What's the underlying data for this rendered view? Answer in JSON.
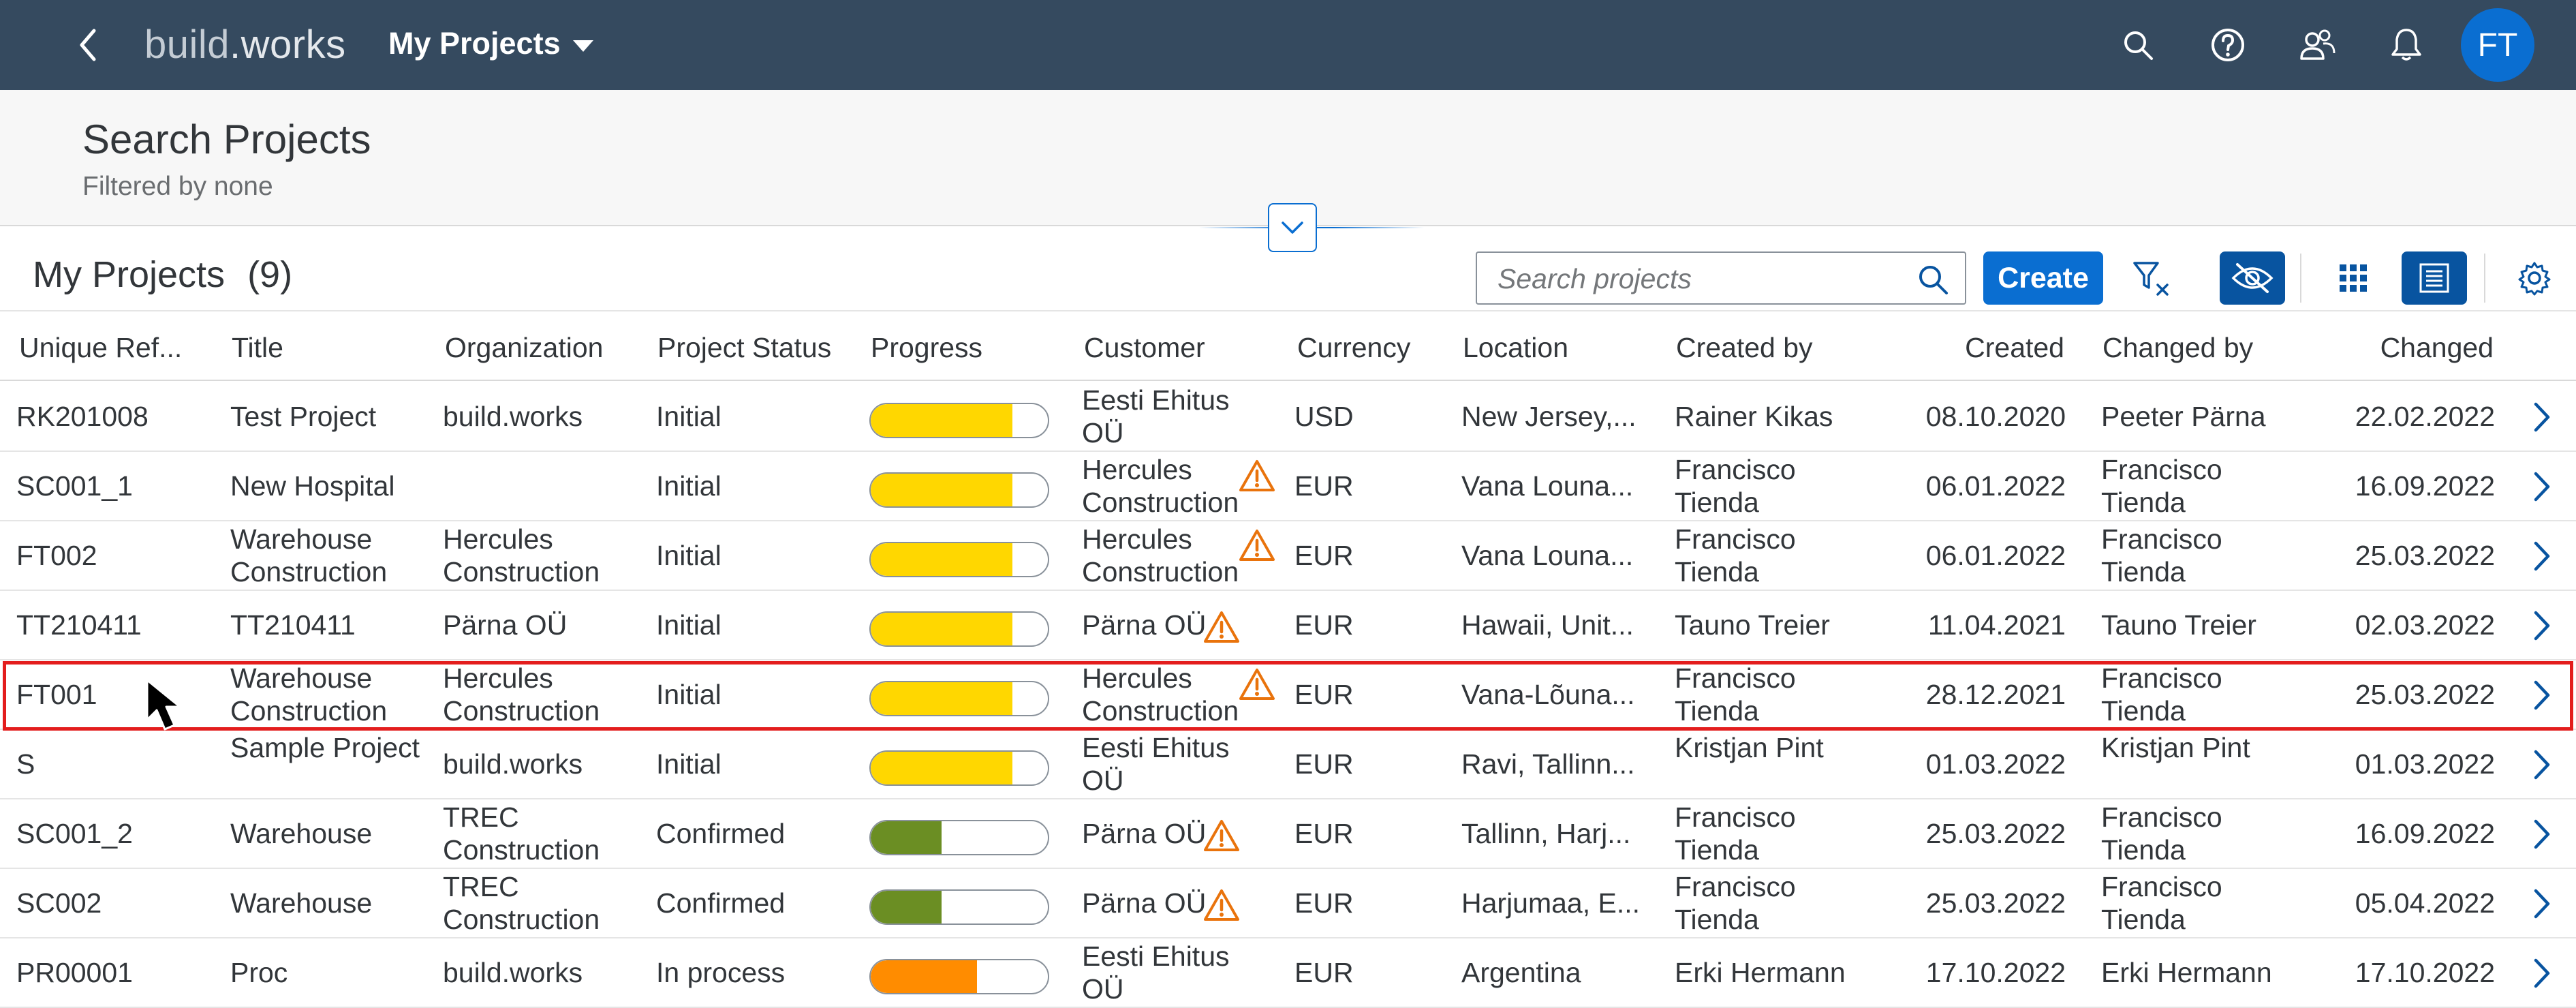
{
  "shell": {
    "brand_a": "build",
    "brand_b": ".works",
    "product": "My Projects",
    "avatar": "FT",
    "icons": [
      "back-icon",
      "search-icon",
      "help-icon",
      "users-icon",
      "bell-icon"
    ]
  },
  "header": {
    "title": "Search Projects",
    "subtitle": "Filtered by none"
  },
  "toolbar": {
    "title": "My Projects",
    "count": "(9)",
    "search_placeholder": "Search projects",
    "create_label": "Create",
    "icons": [
      "clear-filter-icon",
      "hide-icon",
      "grid-view-icon",
      "list-view-icon",
      "settings-icon"
    ]
  },
  "columns": [
    "Unique Ref...",
    "Title",
    "Organization",
    "Project Status",
    "Progress",
    "Customer",
    "Currency",
    "Location",
    "Created by",
    "Created",
    "Changed by",
    "Changed"
  ],
  "colors": {
    "shell": "#354a5f",
    "accent": "#0a6ed1",
    "progress_initial": "#ffd700",
    "progress_confirmed": "#6b8e23",
    "progress_inprocess": "#ff8c00",
    "warning": "#e9730c",
    "highlight": "#e31d1d"
  },
  "rows": [
    {
      "ref": "RK201008",
      "title": "Test Project",
      "org": "build.works",
      "status": "Initial",
      "progress": 0.8,
      "progress_color": "#ffd700",
      "customer": "Eesti Ehitus OÜ",
      "warn": false,
      "currency": "USD",
      "location": "New Jersey,...",
      "created_by": "Rainer Kikas",
      "created": "08.10.2020",
      "changed_by": "Peeter Pärna",
      "changed": "22.02.2022"
    },
    {
      "ref": "SC001_1",
      "title": "New Hospital",
      "org": "",
      "status": "Initial",
      "progress": 0.8,
      "progress_color": "#ffd700",
      "customer": "Hercules Construction",
      "warn": true,
      "currency": "EUR",
      "location": "Vana Louna...",
      "created_by": "Francisco Tienda",
      "created": "06.01.2022",
      "changed_by": "Francisco Tienda",
      "changed": "16.09.2022"
    },
    {
      "ref": "FT002",
      "title": "Warehouse Construction",
      "org": "Hercules Construction",
      "status": "Initial",
      "progress": 0.8,
      "progress_color": "#ffd700",
      "customer": "Hercules Construction",
      "warn": true,
      "currency": "EUR",
      "location": "Vana Louna...",
      "created_by": "Francisco Tienda",
      "created": "06.01.2022",
      "changed_by": "Francisco Tienda",
      "changed": "25.03.2022"
    },
    {
      "ref": "TT210411",
      "title": "TT210411",
      "org": "Pärna OÜ",
      "status": "Initial",
      "progress": 0.8,
      "progress_color": "#ffd700",
      "customer": "Pärna OÜ",
      "warn": true,
      "currency": "EUR",
      "location": "Hawaii, Unit...",
      "created_by": "Tauno Treier",
      "created": "11.04.2021",
      "changed_by": "Tauno Treier",
      "changed": "02.03.2022"
    },
    {
      "ref": "FT001",
      "title": "Warehouse Construction",
      "org": "Hercules Construction",
      "status": "Initial",
      "progress": 0.8,
      "progress_color": "#ffd700",
      "customer": "Hercules Construction",
      "warn": true,
      "currency": "EUR",
      "location": "Vana-Lõuna...",
      "created_by": "Francisco Tienda",
      "created": "28.12.2021",
      "changed_by": "Francisco Tienda",
      "changed": "25.03.2022"
    },
    {
      "ref": "S",
      "title": "Sample Project",
      "org": "build.works",
      "status": "Initial",
      "progress": 0.8,
      "progress_color": "#ffd700",
      "customer": "Eesti Ehitus OÜ",
      "warn": false,
      "currency": "EUR",
      "location": "Ravi, Tallinn...",
      "created_by": "Kristjan Pint",
      "created": "01.03.2022",
      "changed_by": "Kristjan Pint",
      "changed": "01.03.2022"
    },
    {
      "ref": "SC001_2",
      "title": "Warehouse",
      "org": "TREC Construction",
      "status": "Confirmed",
      "progress": 0.4,
      "progress_color": "#6b8e23",
      "customer": "Pärna OÜ",
      "warn": true,
      "currency": "EUR",
      "location": "Tallinn, Harj...",
      "created_by": "Francisco Tienda",
      "created": "25.03.2022",
      "changed_by": "Francisco Tienda",
      "changed": "16.09.2022"
    },
    {
      "ref": "SC002",
      "title": "Warehouse",
      "org": "TREC Construction",
      "status": "Confirmed",
      "progress": 0.4,
      "progress_color": "#6b8e23",
      "customer": "Pärna OÜ",
      "warn": true,
      "currency": "EUR",
      "location": "Harjumaa, E...",
      "created_by": "Francisco Tienda",
      "created": "25.03.2022",
      "changed_by": "Francisco Tienda",
      "changed": "05.04.2022"
    },
    {
      "ref": "PR00001",
      "title": "Proc",
      "org": "build.works",
      "status": "In process",
      "progress": 0.6,
      "progress_color": "#ff8c00",
      "customer": "Eesti Ehitus OÜ",
      "warn": false,
      "currency": "EUR",
      "location": "Argentina",
      "created_by": "Erki Hermann",
      "created": "17.10.2022",
      "changed_by": "Erki Hermann",
      "changed": "17.10.2022"
    }
  ],
  "selected_row": 4
}
